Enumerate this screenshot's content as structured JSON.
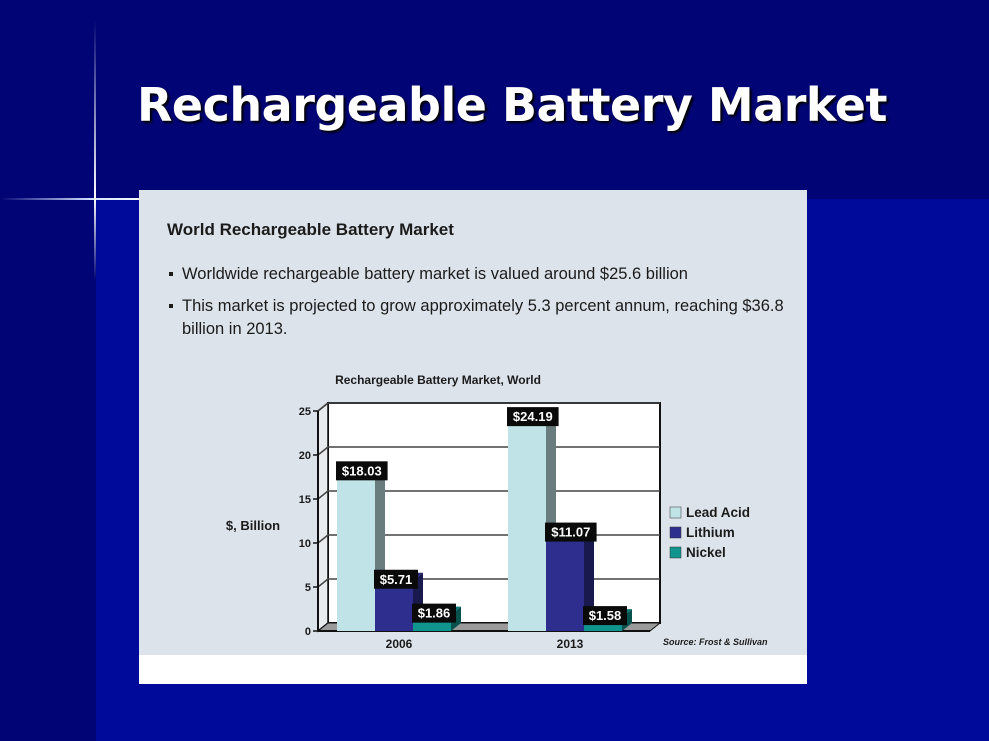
{
  "slide": {
    "title": "Rechargeable Battery Market",
    "colors": {
      "background": "#000a9a",
      "dark_band": "#000474",
      "title": "#ffffff"
    }
  },
  "panel": {
    "heading": "World Rechargeable Battery Market",
    "bullets": [
      "Worldwide rechargeable battery market is valued around $25.6 billion",
      "This market is projected to grow approximately 5.3 percent annum, reaching $36.8 billion in 2013."
    ]
  },
  "chart_data": {
    "type": "bar",
    "title": "Rechargeable Battery Market, World",
    "ylabel": "$, Billion",
    "xlabel": "",
    "categories": [
      "2006",
      "2013"
    ],
    "series": [
      {
        "name": "Lead Acid",
        "color": "#bfe3e6",
        "values": [
          18.03,
          24.19
        ],
        "labels": [
          "$18.03",
          "$24.19"
        ]
      },
      {
        "name": "Lithium",
        "color": "#2e2e8e",
        "values": [
          5.71,
          11.07
        ],
        "labels": [
          "$5.71",
          "$11.07"
        ]
      },
      {
        "name": "Nickel",
        "color": "#0f958e",
        "values": [
          1.86,
          1.58
        ],
        "labels": [
          "$1.86",
          "$1.58"
        ]
      }
    ],
    "ylim": [
      0,
      25
    ],
    "yticks": [
      0,
      5,
      10,
      15,
      20,
      25
    ],
    "grid": true,
    "legend": "right",
    "source": "Source: Frost & Sullivan"
  }
}
